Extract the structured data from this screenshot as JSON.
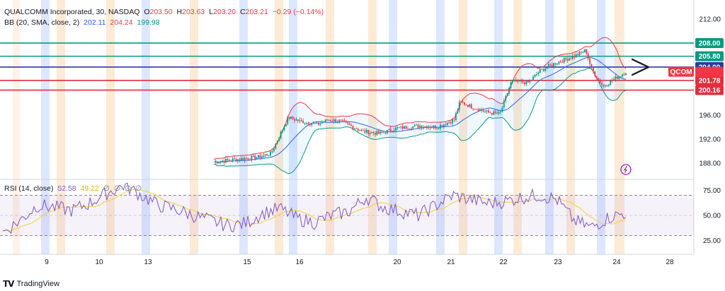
{
  "header": {
    "symbol": "QUALCOMM Incorporated, 30, NASDAQ",
    "o_label": "O",
    "o_value": "203.50",
    "h_label": "H",
    "h_value": "203.63",
    "l_label": "L",
    "l_value": "203.20",
    "c_label": "C",
    "c_value": "203.21",
    "change": "−0.29 (−0.14%)",
    "bb_label": "BB (20, SMA, close, 2)",
    "bb_basis": "202.11",
    "bb_upper": "204.24",
    "bb_lower": "199.98",
    "rsi_label": "RSI (14, close)",
    "rsi_value": "52.58",
    "rsi_ma": "49.22",
    "rsi_extra": [
      "∅",
      "∅",
      "∅",
      "∅"
    ]
  },
  "symbol_tag": "QCOM",
  "brand": "TradingView",
  "colors": {
    "up": "#089981",
    "down": "#f23645",
    "bb_basis": "#2962ff",
    "bb_upper": "#f23645",
    "bb_lower": "#089981",
    "rsi": "#7e57c2",
    "rsi_ma": "#f5d130",
    "green_line": "#089981",
    "blue_line": "#2a3d9a",
    "red_line": "#e0303d",
    "session_blue": "#dde7ff",
    "session_orange": "#fdebd6",
    "lightning": "#9c27b0"
  },
  "chart_data": {
    "type": "candlestick",
    "price_axis": {
      "ticks": [
        "212.00",
        "196.00",
        "192.00",
        "188.00"
      ],
      "range": [
        185.5,
        214
      ]
    },
    "horizontal_levels": [
      {
        "value": 208.0,
        "label": "208.00",
        "color": "green"
      },
      {
        "value": 205.8,
        "label": "205.80",
        "color": "green"
      },
      {
        "value": 204.0,
        "label": "204.00",
        "color": "blue"
      },
      {
        "value": 201.78,
        "label": "201.78",
        "color": "red"
      },
      {
        "value": 200.16,
        "label": "200.16",
        "color": "red"
      }
    ],
    "x_axis_labels": [
      "9",
      "10",
      "13",
      "15",
      "16",
      "20",
      "21",
      "22",
      "23",
      "24",
      "28"
    ],
    "close_path": [
      [
        0,
        188.2
      ],
      [
        8,
        189.0
      ],
      [
        10,
        189.6
      ],
      [
        13,
        195.6
      ],
      [
        15,
        195.0
      ],
      [
        18,
        194.4
      ],
      [
        20,
        195.2
      ],
      [
        22,
        195.0
      ],
      [
        26,
        193.3
      ],
      [
        29,
        192.9
      ],
      [
        32,
        193.8
      ],
      [
        36,
        194.2
      ],
      [
        39,
        194.0
      ],
      [
        42,
        195.2
      ],
      [
        43,
        198.2
      ],
      [
        45,
        197.4
      ],
      [
        48,
        196.4
      ],
      [
        50,
        196.2
      ],
      [
        52,
        201.6
      ],
      [
        55,
        201.4
      ],
      [
        57,
        203.4
      ],
      [
        60,
        204.8
      ],
      [
        63,
        205.8
      ],
      [
        65,
        206.8
      ],
      [
        66,
        203.6
      ],
      [
        68,
        200.8
      ],
      [
        70,
        202.0
      ],
      [
        72,
        203.2
      ]
    ],
    "rsi_axis": {
      "ticks": [
        "75.00",
        "50.00",
        "25.00"
      ],
      "range": [
        15,
        85
      ]
    },
    "rsi_path": [
      [
        0,
        33
      ],
      [
        2,
        45
      ],
      [
        4,
        60
      ],
      [
        6,
        58
      ],
      [
        8,
        55
      ],
      [
        10,
        62
      ],
      [
        12,
        72
      ],
      [
        14,
        80
      ],
      [
        16,
        70
      ],
      [
        18,
        60
      ],
      [
        20,
        56
      ],
      [
        22,
        50
      ],
      [
        24,
        45
      ],
      [
        26,
        40
      ],
      [
        28,
        42
      ],
      [
        30,
        52
      ],
      [
        32,
        57
      ],
      [
        34,
        47
      ],
      [
        36,
        43
      ],
      [
        38,
        50
      ],
      [
        40,
        54
      ],
      [
        42,
        68
      ],
      [
        44,
        58
      ],
      [
        46,
        54
      ],
      [
        48,
        50
      ],
      [
        50,
        60
      ],
      [
        52,
        70
      ],
      [
        54,
        66
      ],
      [
        56,
        62
      ],
      [
        58,
        64
      ],
      [
        60,
        68
      ],
      [
        62,
        70
      ],
      [
        64,
        66
      ],
      [
        66,
        45
      ],
      [
        68,
        38
      ],
      [
        70,
        48
      ],
      [
        72,
        52.58
      ]
    ]
  }
}
